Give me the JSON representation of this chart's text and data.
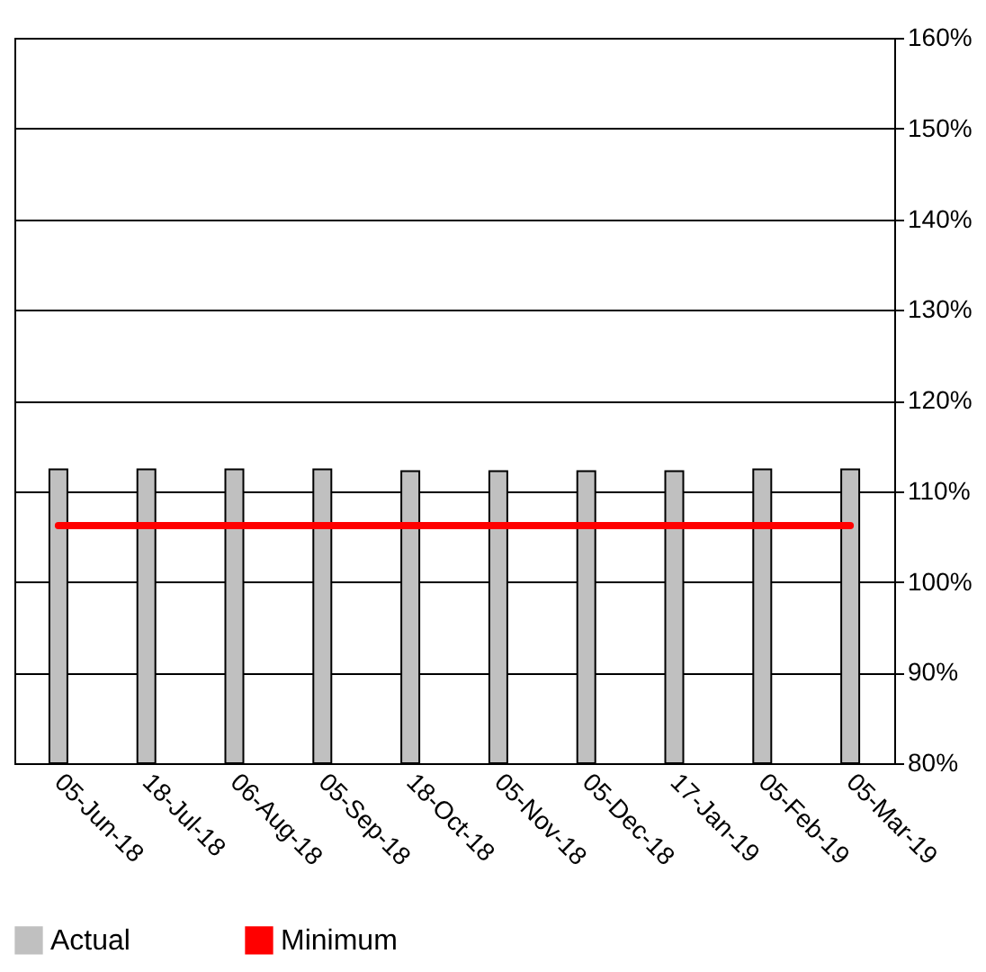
{
  "chart_data": {
    "type": "bar",
    "categories": [
      "05-Jun-18",
      "18-Jul-18",
      "06-Aug-18",
      "05-Sep-18",
      "18-Oct-18",
      "05-Nov-18",
      "05-Dec-18",
      "17-Jan-19",
      "05-Feb-19",
      "05-Mar-19"
    ],
    "series": [
      {
        "name": "Actual",
        "color": "#c0c0c0",
        "values": [
          112.4,
          112.4,
          112.4,
          112.4,
          112.2,
          112.2,
          112.2,
          112.2,
          112.4,
          112.4
        ]
      },
      {
        "name": "Minimum",
        "type": "line",
        "color": "#ff0000",
        "values": [
          106.2,
          106.2,
          106.2,
          106.2,
          106.2,
          106.2,
          106.2,
          106.2,
          106.2,
          106.2
        ]
      }
    ],
    "ylim": [
      80,
      160
    ],
    "yticks": [
      {
        "value": 80,
        "label": "80%"
      },
      {
        "value": 90,
        "label": "90%"
      },
      {
        "value": 100,
        "label": "100%"
      },
      {
        "value": 110,
        "label": "110%"
      },
      {
        "value": 120,
        "label": "120%"
      },
      {
        "value": 130,
        "label": "130%"
      },
      {
        "value": 140,
        "label": "140%"
      },
      {
        "value": 150,
        "label": "150%"
      },
      {
        "value": 160,
        "label": "160%"
      }
    ],
    "grid": "y",
    "legend": "bottom"
  }
}
